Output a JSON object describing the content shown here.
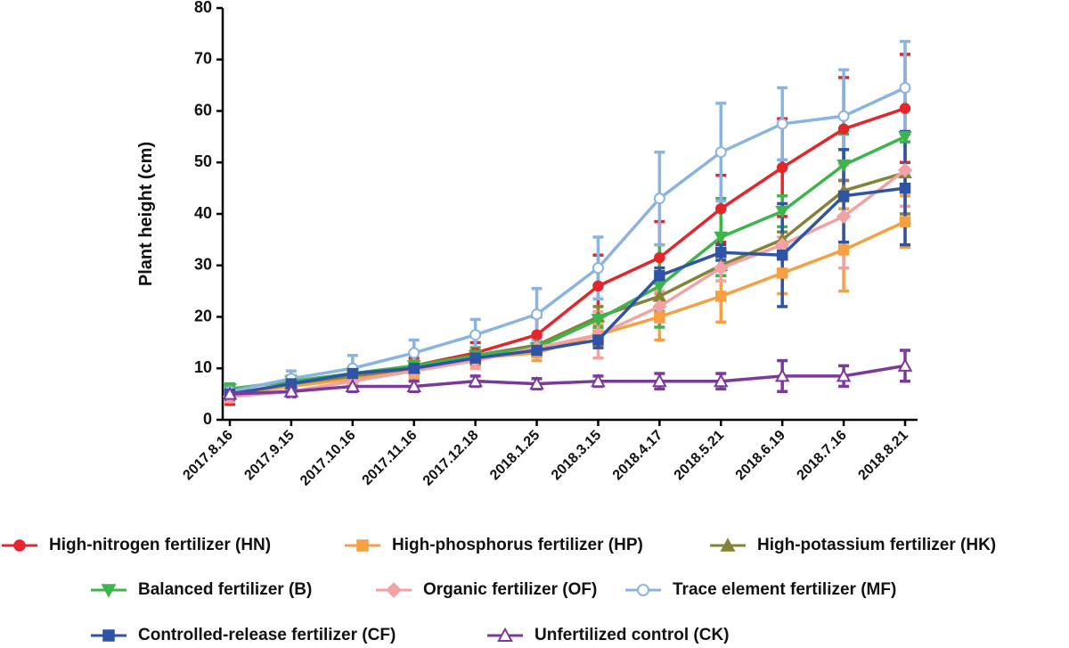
{
  "chart_data": {
    "type": "line",
    "y_label": "Plant height (cm)",
    "categories": [
      "2017.8.16",
      "2017.9.15",
      "2017.10.16",
      "2017.11.16",
      "2017.12.18",
      "2018.1.25",
      "2018.3.15",
      "2018.4.17",
      "2018.5.21",
      "2018.6.19",
      "2018.7.16",
      "2018.8.21"
    ],
    "ylim": [
      0,
      80
    ],
    "yticks": [
      0,
      10,
      20,
      30,
      40,
      50,
      60,
      70,
      80
    ],
    "series": [
      {
        "name": "High-nitrogen fertilizer (HN)",
        "color": "#e3262b",
        "marker": "circle",
        "values": [
          4.5,
          7,
          8.5,
          10.5,
          13,
          16.5,
          26,
          31.5,
          41,
          49,
          56.5,
          60.5
        ],
        "errors": [
          1.5,
          1.5,
          1.5,
          1.5,
          2,
          3.5,
          6,
          7,
          6.5,
          9.5,
          10,
          10.5
        ]
      },
      {
        "name": "High-phosphorus fertilizer (HP)",
        "color": "#f4a043",
        "marker": "square",
        "values": [
          5,
          6.5,
          8,
          9.5,
          12,
          13,
          16.5,
          20,
          24,
          28.5,
          33,
          38.5
        ],
        "errors": [
          1,
          1,
          1,
          1.5,
          1.5,
          1.5,
          2,
          4.5,
          5,
          4,
          8,
          5
        ]
      },
      {
        "name": "High-potassium fertilizer (HK)",
        "color": "#82843a",
        "marker": "triangle",
        "values": [
          5,
          7,
          8.5,
          10,
          12.5,
          14.5,
          20,
          24,
          30,
          35,
          44.5,
          48
        ],
        "errors": [
          1,
          1,
          1,
          1,
          1.5,
          1.5,
          2,
          3,
          2,
          1.5,
          2,
          8
        ]
      },
      {
        "name": "Balanced fertilizer (B)",
        "color": "#3cb54a",
        "marker": "triangle-down",
        "values": [
          6,
          7.5,
          9,
          10.5,
          12.5,
          14,
          19.5,
          26,
          35.5,
          40.5,
          49.5,
          55
        ],
        "errors": [
          1,
          1,
          1,
          1,
          1.5,
          1.5,
          1.5,
          8,
          7.5,
          3,
          6,
          1
        ]
      },
      {
        "name": "Organic fertilizer (OF)",
        "color": "#f2a2a2",
        "marker": "diamond",
        "values": [
          4.5,
          5.5,
          7.5,
          9.5,
          11.5,
          14,
          16.5,
          22,
          29.5,
          34,
          39.5,
          48.5
        ],
        "errors": [
          1,
          1,
          1,
          1,
          1.5,
          1.5,
          4.5,
          3,
          2.5,
          1.5,
          10,
          7
        ]
      },
      {
        "name": "Trace element fertilizer (MF)",
        "color": "#8ab4e0",
        "marker": "open-circle",
        "values": [
          5.5,
          8,
          10,
          13,
          16.5,
          20.5,
          29.5,
          43,
          52,
          57.5,
          59,
          64.5
        ],
        "errors": [
          1,
          1.5,
          2.5,
          2.5,
          3,
          5,
          6,
          9,
          9.5,
          7,
          9,
          9
        ]
      },
      {
        "name": "Controlled-release fertilizer (CF)",
        "color": "#2f53a5",
        "marker": "square",
        "values": [
          5,
          7,
          9,
          10,
          12,
          13.5,
          15.5,
          28,
          32.5,
          32,
          43.5,
          45
        ],
        "errors": [
          1,
          1,
          1,
          1,
          1,
          1,
          1.5,
          1.5,
          1.5,
          10,
          9,
          11
        ]
      },
      {
        "name": "Unfertilized control (CK)",
        "color": "#7b3a9b",
        "marker": "open-triangle",
        "values": [
          5,
          5.5,
          6.5,
          6.5,
          7.5,
          7,
          7.5,
          7.5,
          7.5,
          8.5,
          8.5,
          10.5
        ],
        "errors": [
          1,
          1,
          1,
          1,
          1,
          1,
          1,
          1.5,
          1.5,
          3,
          2,
          3
        ]
      }
    ]
  }
}
